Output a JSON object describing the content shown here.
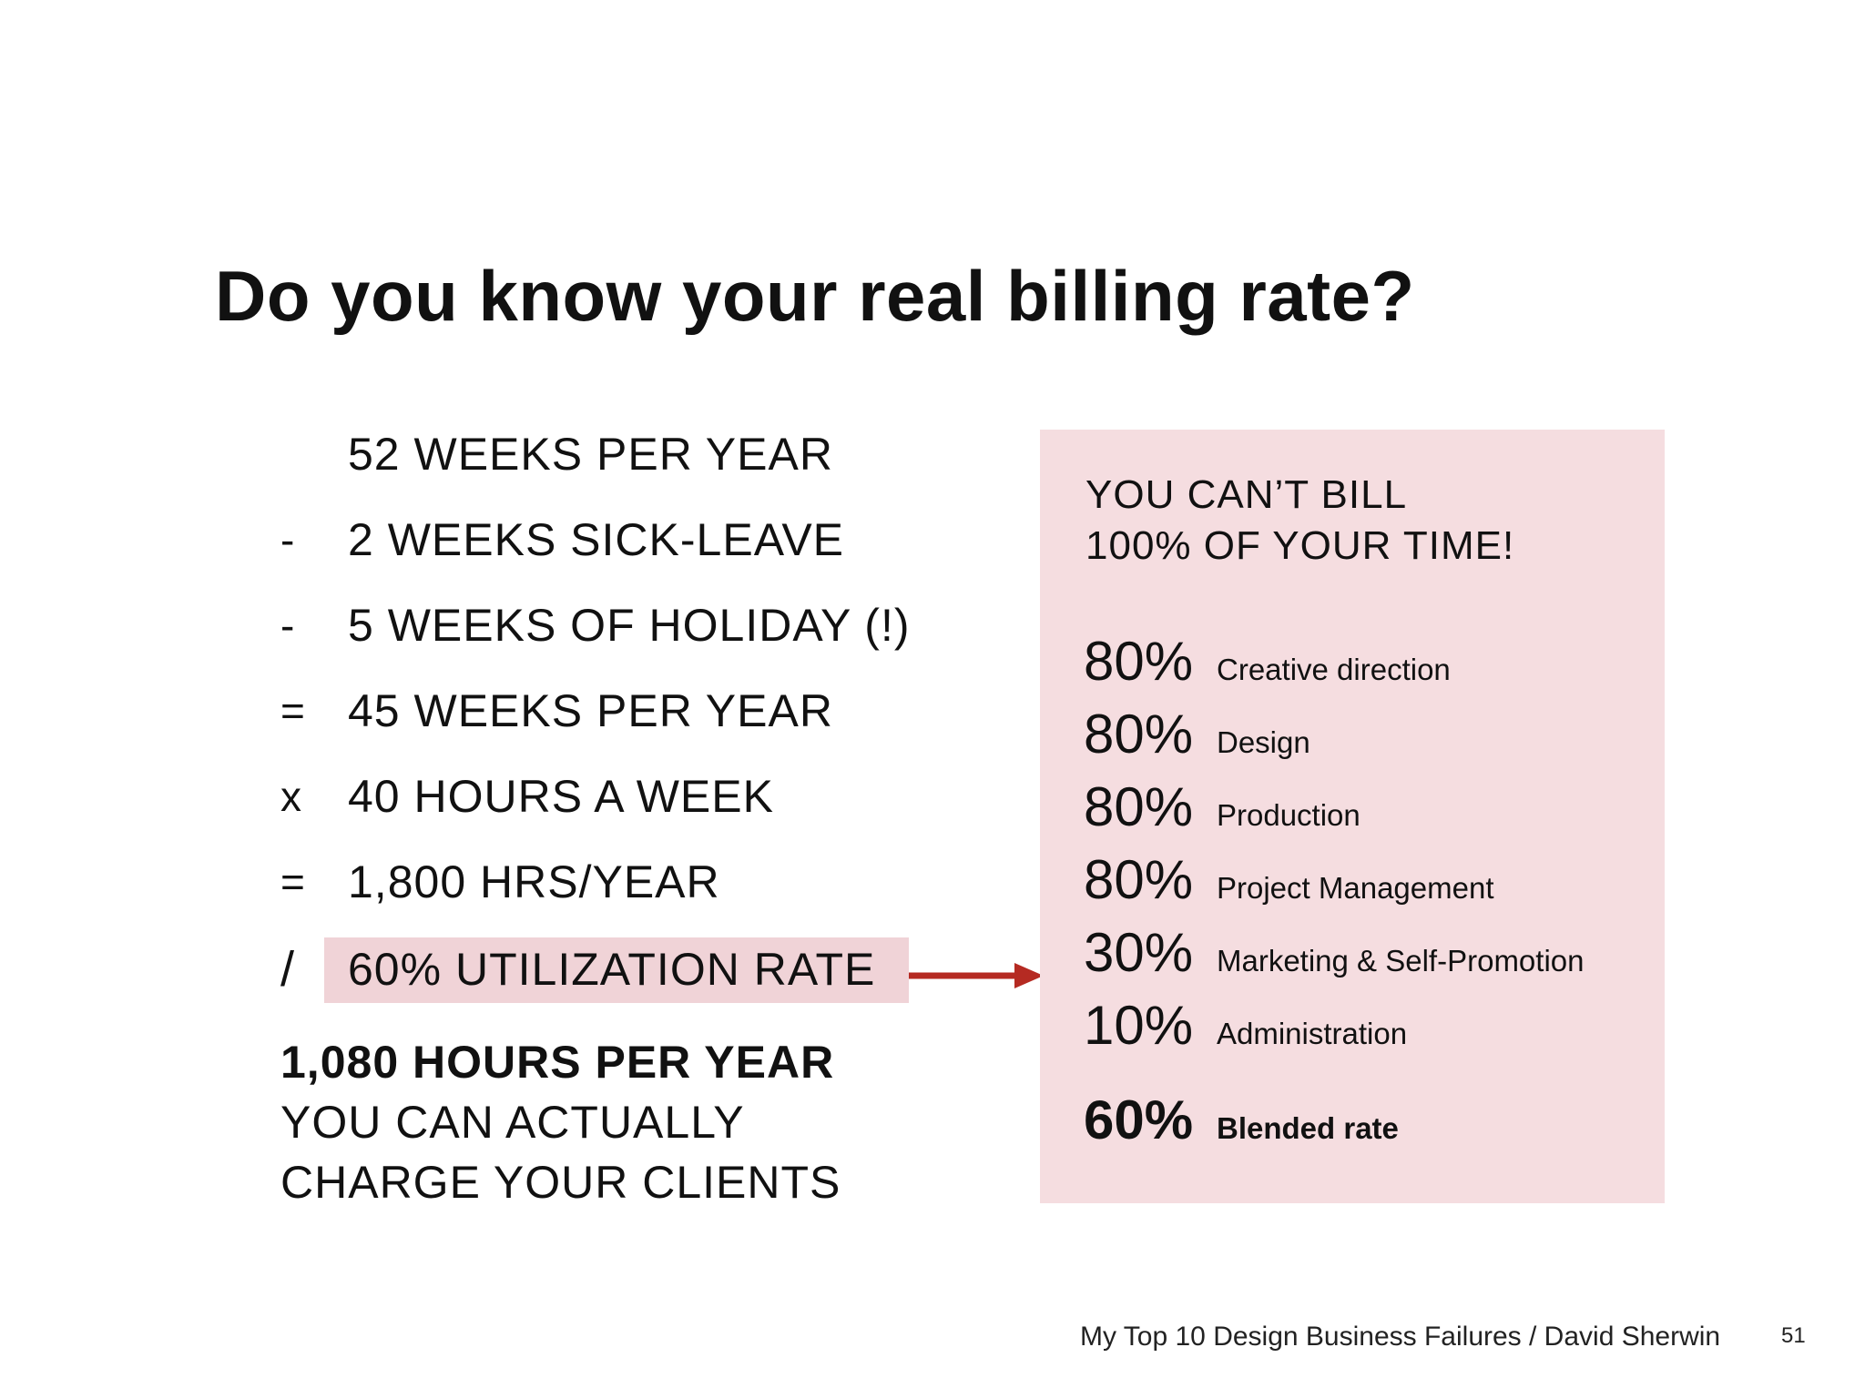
{
  "slide": {
    "title": "Do you know your real billing rate?",
    "calculation": [
      {
        "op": "",
        "text": "52 WEEKS PER YEAR"
      },
      {
        "op": "-",
        "text": "2 WEEKS SICK-LEAVE"
      },
      {
        "op": "-",
        "text": "5 WEEKS OF HOLIDAY (!)"
      },
      {
        "op": "=",
        "text": "45 WEEKS PER YEAR"
      },
      {
        "op": "x",
        "text": "40 HOURS A WEEK"
      },
      {
        "op": "=",
        "text": "1,800 HRS/YEAR"
      },
      {
        "op": "/",
        "text": "60% UTILIZATION RATE"
      }
    ],
    "result": {
      "bold": "1,080 HOURS PER YEAR",
      "line1": "YOU CAN ACTUALLY",
      "line2": "CHARGE YOUR CLIENTS"
    },
    "panel": {
      "heading_line1": "YOU CAN’T BILL",
      "heading_line2": "100% OF YOUR TIME!",
      "rates": [
        {
          "pct": "80%",
          "label": "Creative direction"
        },
        {
          "pct": "80%",
          "label": "Design"
        },
        {
          "pct": "80%",
          "label": "Production"
        },
        {
          "pct": "80%",
          "label": "Project Management"
        },
        {
          "pct": "30%",
          "label": "Marketing & Self-Promotion"
        },
        {
          "pct": "10%",
          "label": "Administration"
        }
      ],
      "blended": {
        "pct": "60%",
        "label": "Blended rate"
      }
    },
    "footer": "My Top 10 Design Business Failures / David Sherwin",
    "page_number": "51"
  },
  "colors": {
    "highlight": "#f0d3d7",
    "panel": "#f5dde0",
    "arrow": "#b52a22",
    "text": "#111111"
  }
}
